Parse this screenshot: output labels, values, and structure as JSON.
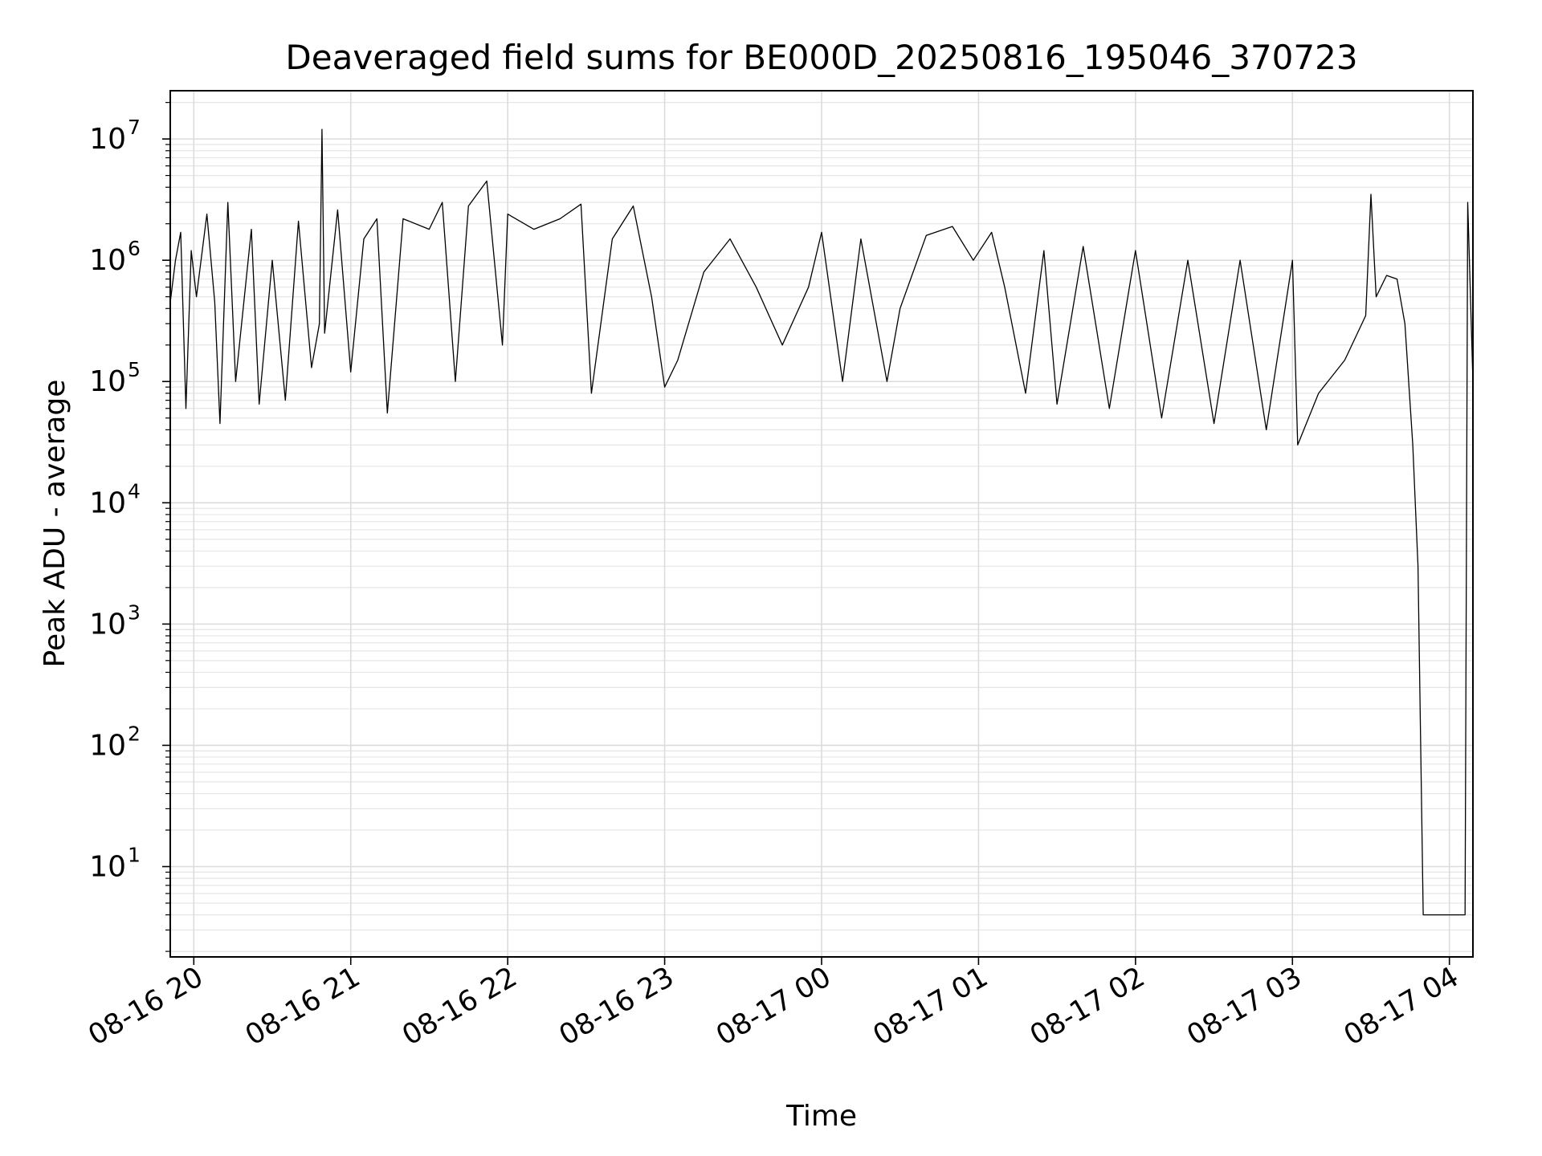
{
  "chart_data": {
    "type": "line",
    "title": "Deaveraged field sums for BE000D_20250816_195046_370723",
    "xlabel": "Time",
    "ylabel": "Peak ADU - average",
    "yscale": "log",
    "ylim": [
      1.8,
      25000000
    ],
    "xlim": [
      "2025-08-16T19:51",
      "2025-08-17T04:09"
    ],
    "grid": "major and minor",
    "line_color": "#000000",
    "x_ticks": [
      {
        "t": "2025-08-16T20:00",
        "label": "08-16 20"
      },
      {
        "t": "2025-08-16T21:00",
        "label": "08-16 21"
      },
      {
        "t": "2025-08-16T22:00",
        "label": "08-16 22"
      },
      {
        "t": "2025-08-16T23:00",
        "label": "08-16 23"
      },
      {
        "t": "2025-08-17T00:00",
        "label": "08-17 00"
      },
      {
        "t": "2025-08-17T01:00",
        "label": "08-17 01"
      },
      {
        "t": "2025-08-17T02:00",
        "label": "08-17 02"
      },
      {
        "t": "2025-08-17T03:00",
        "label": "08-17 03"
      },
      {
        "t": "2025-08-17T04:00",
        "label": "08-17 04"
      }
    ],
    "y_ticks": [
      {
        "value": 10,
        "base": "10",
        "exp": "1"
      },
      {
        "value": 100,
        "base": "10",
        "exp": "2"
      },
      {
        "value": 1000,
        "base": "10",
        "exp": "3"
      },
      {
        "value": 10000,
        "base": "10",
        "exp": "4"
      },
      {
        "value": 100000,
        "base": "10",
        "exp": "5"
      },
      {
        "value": 1000000,
        "base": "10",
        "exp": "6"
      },
      {
        "value": 10000000,
        "base": "10",
        "exp": "7"
      }
    ],
    "series": [
      {
        "points": [
          [
            "2025-08-16T19:51",
            450000
          ],
          [
            "2025-08-16T19:53",
            1000000
          ],
          [
            "2025-08-16T19:55",
            1700000
          ],
          [
            "2025-08-16T19:57",
            60000
          ],
          [
            "2025-08-16T19:59",
            1200000
          ],
          [
            "2025-08-16T20:01",
            500000
          ],
          [
            "2025-08-16T20:05",
            2400000
          ],
          [
            "2025-08-16T20:08",
            450000
          ],
          [
            "2025-08-16T20:10",
            45000
          ],
          [
            "2025-08-16T20:13",
            3000000
          ],
          [
            "2025-08-16T20:16",
            100000
          ],
          [
            "2025-08-16T20:22",
            1800000
          ],
          [
            "2025-08-16T20:25",
            65000
          ],
          [
            "2025-08-16T20:30",
            1000000
          ],
          [
            "2025-08-16T20:35",
            70000
          ],
          [
            "2025-08-16T20:40",
            2100000
          ],
          [
            "2025-08-16T20:45",
            130000
          ],
          [
            "2025-08-16T20:48",
            300000
          ],
          [
            "2025-08-16T20:49",
            12000000
          ],
          [
            "2025-08-16T20:50",
            250000
          ],
          [
            "2025-08-16T20:55",
            2600000
          ],
          [
            "2025-08-16T21:00",
            120000
          ],
          [
            "2025-08-16T21:05",
            1500000
          ],
          [
            "2025-08-16T21:10",
            2200000
          ],
          [
            "2025-08-16T21:14",
            55000
          ],
          [
            "2025-08-16T21:20",
            2200000
          ],
          [
            "2025-08-16T21:30",
            1800000
          ],
          [
            "2025-08-16T21:35",
            3000000
          ],
          [
            "2025-08-16T21:40",
            100000
          ],
          [
            "2025-08-16T21:45",
            2800000
          ],
          [
            "2025-08-16T21:52",
            4500000
          ],
          [
            "2025-08-16T21:58",
            200000
          ],
          [
            "2025-08-16T22:00",
            2400000
          ],
          [
            "2025-08-16T22:10",
            1800000
          ],
          [
            "2025-08-16T22:20",
            2200000
          ],
          [
            "2025-08-16T22:28",
            2900000
          ],
          [
            "2025-08-16T22:32",
            80000
          ],
          [
            "2025-08-16T22:40",
            1500000
          ],
          [
            "2025-08-16T22:48",
            2800000
          ],
          [
            "2025-08-16T22:55",
            500000
          ],
          [
            "2025-08-16T23:00",
            90000
          ],
          [
            "2025-08-16T23:05",
            150000
          ],
          [
            "2025-08-16T23:15",
            800000
          ],
          [
            "2025-08-16T23:25",
            1500000
          ],
          [
            "2025-08-16T23:35",
            600000
          ],
          [
            "2025-08-16T23:45",
            200000
          ],
          [
            "2025-08-16T23:55",
            600000
          ],
          [
            "2025-08-17T00:00",
            1700000
          ],
          [
            "2025-08-17T00:08",
            100000
          ],
          [
            "2025-08-17T00:15",
            1500000
          ],
          [
            "2025-08-17T00:25",
            100000
          ],
          [
            "2025-08-17T00:30",
            400000
          ],
          [
            "2025-08-17T00:40",
            1600000
          ],
          [
            "2025-08-17T00:50",
            1900000
          ],
          [
            "2025-08-17T00:58",
            1000000
          ],
          [
            "2025-08-17T01:05",
            1700000
          ],
          [
            "2025-08-17T01:10",
            600000
          ],
          [
            "2025-08-17T01:18",
            80000
          ],
          [
            "2025-08-17T01:25",
            1200000
          ],
          [
            "2025-08-17T01:30",
            65000
          ],
          [
            "2025-08-17T01:40",
            1300000
          ],
          [
            "2025-08-17T01:50",
            60000
          ],
          [
            "2025-08-17T02:00",
            1200000
          ],
          [
            "2025-08-17T02:10",
            50000
          ],
          [
            "2025-08-17T02:20",
            1000000
          ],
          [
            "2025-08-17T02:30",
            45000
          ],
          [
            "2025-08-17T02:40",
            1000000
          ],
          [
            "2025-08-17T02:50",
            40000
          ],
          [
            "2025-08-17T03:00",
            1000000
          ],
          [
            "2025-08-17T03:02",
            30000
          ],
          [
            "2025-08-17T03:10",
            80000
          ],
          [
            "2025-08-17T03:20",
            150000
          ],
          [
            "2025-08-17T03:28",
            350000
          ],
          [
            "2025-08-17T03:30",
            3500000
          ],
          [
            "2025-08-17T03:32",
            500000
          ],
          [
            "2025-08-17T03:36",
            750000
          ],
          [
            "2025-08-17T03:40",
            700000
          ],
          [
            "2025-08-17T03:43",
            300000
          ],
          [
            "2025-08-17T03:46",
            30000
          ],
          [
            "2025-08-17T03:48",
            3000
          ],
          [
            "2025-08-17T03:50",
            4
          ],
          [
            "2025-08-17T04:06",
            4
          ],
          [
            "2025-08-17T04:07",
            3000000
          ],
          [
            "2025-08-17T04:09",
            100000
          ]
        ]
      }
    ]
  }
}
